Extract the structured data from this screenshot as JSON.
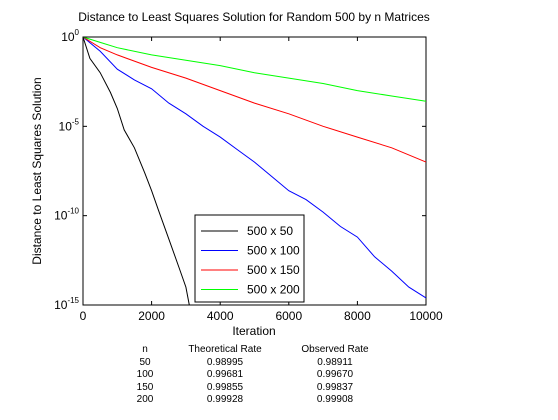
{
  "chart_data": {
    "type": "line",
    "title": "Distance to Least Squares Solution for Random 500 by n Matrices",
    "xlabel": "Iteration",
    "ylabel": "Distance to Least Squares Solution",
    "xlim": [
      0,
      10000
    ],
    "ylim_log10": [
      -15,
      0
    ],
    "yscale": "log",
    "xticks": [
      0,
      2000,
      4000,
      6000,
      8000,
      10000
    ],
    "xtick_labels": [
      "0",
      "2000",
      "4000",
      "6000",
      "8000",
      "10000"
    ],
    "yticks_log10": [
      0,
      -5,
      -10,
      -15
    ],
    "ytick_labels": [
      {
        "base": "10",
        "exp": "0"
      },
      {
        "base": "10",
        "exp": "-5"
      },
      {
        "base": "10",
        "exp": "-10"
      },
      {
        "base": "10",
        "exp": "-15"
      }
    ],
    "grid": false,
    "legend_position": "lower-center",
    "series": [
      {
        "name": "500 x 50",
        "color": "#000000",
        "x": [
          0,
          200,
          500,
          800,
          1000,
          1200,
          1500,
          1800,
          2000,
          2200,
          2500,
          2800,
          3000,
          3100
        ],
        "log10_y": [
          0,
          -1.2,
          -2.0,
          -3.1,
          -4.0,
          -5.2,
          -6.2,
          -7.6,
          -8.6,
          -9.7,
          -11.3,
          -12.9,
          -14.0,
          -15.0
        ]
      },
      {
        "name": "500 x 100",
        "color": "#0000ff",
        "x": [
          0,
          500,
          1000,
          1500,
          2000,
          2500,
          3000,
          3500,
          4000,
          4500,
          5000,
          5500,
          6000,
          6500,
          7000,
          7500,
          8000,
          8500,
          9000,
          9500,
          10000
        ],
        "log10_y": [
          0,
          -0.8,
          -1.8,
          -2.4,
          -2.9,
          -3.7,
          -4.3,
          -5.0,
          -5.6,
          -6.3,
          -7.0,
          -7.8,
          -8.6,
          -9.1,
          -9.8,
          -10.6,
          -11.2,
          -12.3,
          -13.1,
          -14.0,
          -14.6
        ]
      },
      {
        "name": "500 x 150",
        "color": "#ff0000",
        "x": [
          0,
          500,
          1000,
          2000,
          3000,
          4000,
          5000,
          6000,
          7000,
          8000,
          9000,
          10000
        ],
        "log10_y": [
          0,
          -0.6,
          -1.0,
          -1.7,
          -2.3,
          -3.0,
          -3.7,
          -4.3,
          -5.0,
          -5.6,
          -6.2,
          -7.0
        ]
      },
      {
        "name": "500 x 200",
        "color": "#00ff00",
        "x": [
          0,
          500,
          1000,
          2000,
          3000,
          4000,
          5000,
          6000,
          7000,
          8000,
          9000,
          10000
        ],
        "log10_y": [
          0,
          -0.3,
          -0.6,
          -1.0,
          -1.3,
          -1.6,
          -2.0,
          -2.3,
          -2.6,
          -3.0,
          -3.3,
          -3.6
        ]
      }
    ]
  },
  "rate_table": {
    "headers": [
      "n",
      "Theoretical Rate",
      "Observed Rate"
    ],
    "rows": [
      [
        "50",
        "0.98995",
        "0.98911"
      ],
      [
        "100",
        "0.99681",
        "0.99670"
      ],
      [
        "150",
        "0.99855",
        "0.99837"
      ],
      [
        "200",
        "0.99928",
        "0.99908"
      ]
    ]
  }
}
